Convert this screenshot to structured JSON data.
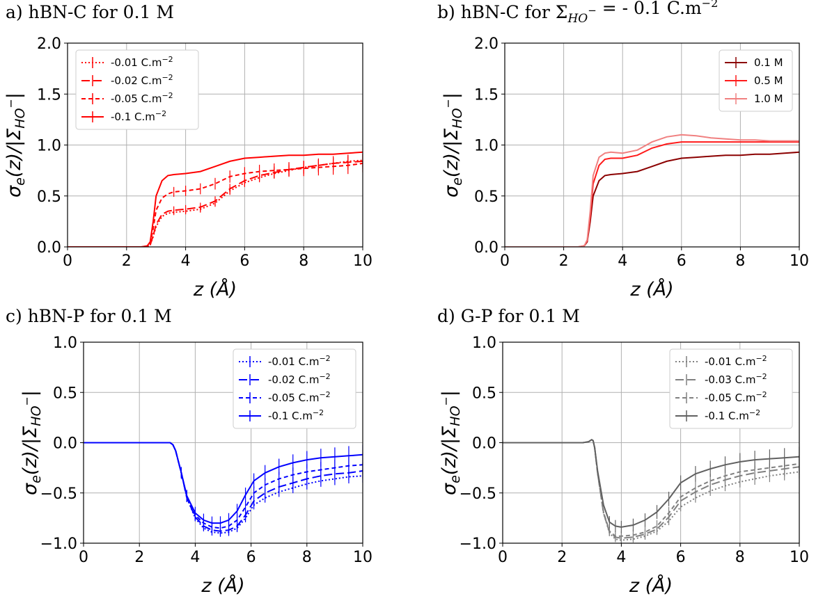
{
  "chart_data": [
    {
      "type": "line",
      "panel": "a",
      "title": "a) hBN-C for 0.1 M",
      "xlabel": "z (Å)",
      "ylabel": "σe(z)/|ΣHO−|",
      "xlim": [
        0,
        10
      ],
      "ylim": [
        0,
        2
      ],
      "xticks": [
        "0",
        "2",
        "4",
        "6",
        "8",
        "10"
      ],
      "yticks": [
        "0.0",
        "0.5",
        "1.0",
        "1.5",
        "2.0"
      ],
      "grid": true,
      "legend_position": "top-left",
      "x": [
        0,
        2.5,
        2.7,
        2.8,
        2.9,
        3.0,
        3.2,
        3.4,
        3.6,
        4.0,
        4.5,
        5.0,
        5.5,
        6.0,
        6.5,
        7.0,
        7.5,
        8.0,
        8.5,
        9.0,
        9.5,
        10.0
      ],
      "series": [
        {
          "name": "-0.01 C.m⁻²",
          "color": "#ff0000",
          "dash": "2,3",
          "errorbars": true,
          "values": [
            0,
            0,
            0.005,
            0.02,
            0.1,
            0.2,
            0.3,
            0.33,
            0.34,
            0.35,
            0.37,
            0.43,
            0.55,
            0.63,
            0.68,
            0.72,
            0.75,
            0.78,
            0.8,
            0.82,
            0.84,
            0.85
          ]
        },
        {
          "name": "-0.02 C.m⁻²",
          "color": "#ff0000",
          "dash": "12,5",
          "errorbars": true,
          "values": [
            0,
            0,
            0.005,
            0.02,
            0.11,
            0.22,
            0.32,
            0.35,
            0.36,
            0.37,
            0.39,
            0.45,
            0.57,
            0.65,
            0.7,
            0.73,
            0.76,
            0.78,
            0.8,
            0.82,
            0.83,
            0.84
          ]
        },
        {
          "name": "-0.05 C.m⁻²",
          "color": "#ff0000",
          "dash": "6,4",
          "errorbars": true,
          "values": [
            0,
            0,
            0.007,
            0.03,
            0.18,
            0.36,
            0.48,
            0.52,
            0.54,
            0.55,
            0.57,
            0.62,
            0.69,
            0.72,
            0.74,
            0.75,
            0.76,
            0.77,
            0.78,
            0.79,
            0.8,
            0.82
          ]
        },
        {
          "name": "-0.1 C.m⁻²",
          "color": "#ff0000",
          "dash": "",
          "errorbars": false,
          "values": [
            0,
            0,
            0.01,
            0.05,
            0.25,
            0.5,
            0.65,
            0.7,
            0.71,
            0.72,
            0.74,
            0.79,
            0.84,
            0.87,
            0.88,
            0.89,
            0.9,
            0.9,
            0.91,
            0.91,
            0.92,
            0.93
          ]
        }
      ]
    },
    {
      "type": "line",
      "panel": "b",
      "title": "b) hBN-C for ΣHO⁻ = - 0.1 C.m⁻²",
      "xlabel": "z (Å)",
      "ylabel": "σe(z)/|ΣHO−|",
      "xlim": [
        0,
        10
      ],
      "ylim": [
        0,
        2
      ],
      "xticks": [
        "0",
        "2",
        "4",
        "6",
        "8",
        "10"
      ],
      "yticks": [
        "0.0",
        "0.5",
        "1.0",
        "1.5",
        "2.0"
      ],
      "grid": true,
      "legend_position": "top-right",
      "x": [
        0,
        2.5,
        2.7,
        2.8,
        2.9,
        3.0,
        3.2,
        3.4,
        3.6,
        4.0,
        4.5,
        5.0,
        5.5,
        6.0,
        6.5,
        7.0,
        7.5,
        8.0,
        8.5,
        9.0,
        9.5,
        10.0
      ],
      "series": [
        {
          "name": "0.1 M",
          "color": "#8b0000",
          "dash": "",
          "errorbars": false,
          "values": [
            0,
            0,
            0.01,
            0.05,
            0.25,
            0.5,
            0.65,
            0.7,
            0.71,
            0.72,
            0.74,
            0.79,
            0.84,
            0.87,
            0.88,
            0.89,
            0.9,
            0.9,
            0.91,
            0.91,
            0.92,
            0.93
          ]
        },
        {
          "name": "0.5 M",
          "color": "#ff1a1a",
          "dash": "",
          "errorbars": false,
          "values": [
            0,
            0,
            0.01,
            0.06,
            0.3,
            0.62,
            0.8,
            0.86,
            0.87,
            0.87,
            0.9,
            0.97,
            1.01,
            1.03,
            1.03,
            1.03,
            1.03,
            1.03,
            1.03,
            1.03,
            1.03,
            1.03
          ]
        },
        {
          "name": "1.0 M",
          "color": "#f08080",
          "dash": "",
          "errorbars": false,
          "values": [
            0,
            0,
            0.01,
            0.07,
            0.35,
            0.7,
            0.88,
            0.92,
            0.93,
            0.92,
            0.95,
            1.03,
            1.08,
            1.1,
            1.09,
            1.07,
            1.06,
            1.05,
            1.05,
            1.04,
            1.04,
            1.04
          ]
        }
      ]
    },
    {
      "type": "line",
      "panel": "c",
      "title": "c) hBN-P for 0.1 M",
      "xlabel": "z (Å)",
      "ylabel": "σe(z)/|ΣHO−|",
      "xlim": [
        0,
        10
      ],
      "ylim": [
        -1,
        1
      ],
      "xticks": [
        "0",
        "2",
        "4",
        "6",
        "8",
        "10"
      ],
      "yticks": [
        "−1.0",
        "−0.5",
        "0.0",
        "0.5",
        "1.0"
      ],
      "grid": true,
      "legend_position": "top-right",
      "x": [
        0,
        2.8,
        3.1,
        3.2,
        3.3,
        3.5,
        3.7,
        4.0,
        4.3,
        4.6,
        4.9,
        5.2,
        5.5,
        5.8,
        6.1,
        6.5,
        7.0,
        7.5,
        8.0,
        8.5,
        9.0,
        9.5,
        10.0
      ],
      "series": [
        {
          "name": "-0.01 C.m⁻²",
          "color": "#0000ff",
          "dash": "2,3",
          "errorbars": true,
          "values": [
            0,
            0,
            0,
            -0.02,
            -0.08,
            -0.3,
            -0.55,
            -0.75,
            -0.85,
            -0.89,
            -0.9,
            -0.89,
            -0.85,
            -0.75,
            -0.62,
            -0.55,
            -0.49,
            -0.45,
            -0.41,
            -0.38,
            -0.36,
            -0.34,
            -0.33
          ]
        },
        {
          "name": "-0.02 C.m⁻²",
          "color": "#0000ff",
          "dash": "12,5",
          "errorbars": true,
          "values": [
            0,
            0,
            0,
            -0.02,
            -0.08,
            -0.3,
            -0.55,
            -0.74,
            -0.83,
            -0.87,
            -0.88,
            -0.87,
            -0.83,
            -0.72,
            -0.58,
            -0.5,
            -0.44,
            -0.4,
            -0.36,
            -0.33,
            -0.31,
            -0.3,
            -0.28
          ]
        },
        {
          "name": "-0.05 C.m⁻²",
          "color": "#0000ff",
          "dash": "6,4",
          "errorbars": true,
          "values": [
            0,
            0,
            0,
            -0.02,
            -0.08,
            -0.3,
            -0.54,
            -0.72,
            -0.8,
            -0.84,
            -0.85,
            -0.83,
            -0.77,
            -0.64,
            -0.5,
            -0.42,
            -0.36,
            -0.32,
            -0.29,
            -0.27,
            -0.25,
            -0.23,
            -0.22
          ]
        },
        {
          "name": "-0.1 C.m⁻²",
          "color": "#0000ff",
          "dash": "",
          "errorbars": true,
          "values": [
            0,
            0,
            0,
            -0.02,
            -0.08,
            -0.3,
            -0.53,
            -0.7,
            -0.77,
            -0.8,
            -0.8,
            -0.77,
            -0.68,
            -0.52,
            -0.38,
            -0.3,
            -0.24,
            -0.2,
            -0.17,
            -0.15,
            -0.14,
            -0.13,
            -0.12
          ]
        }
      ]
    },
    {
      "type": "line",
      "panel": "d",
      "title": "d) G-P for 0.1 M",
      "xlabel": "z (Å)",
      "ylabel": "σe(z)/|ΣHO−|",
      "xlim": [
        0,
        10
      ],
      "ylim": [
        -1,
        1
      ],
      "xticks": [
        "0",
        "2",
        "4",
        "6",
        "8",
        "10"
      ],
      "yticks": [
        "−1.0",
        "−0.5",
        "0.0",
        "0.5",
        "1.0"
      ],
      "grid": true,
      "legend_position": "top-right",
      "x": [
        0,
        2.7,
        2.9,
        3.0,
        3.05,
        3.1,
        3.2,
        3.4,
        3.6,
        3.8,
        4.0,
        4.4,
        4.8,
        5.2,
        5.6,
        6.0,
        6.5,
        7.0,
        7.5,
        8.0,
        8.5,
        9.0,
        9.5,
        10.0
      ],
      "series": [
        {
          "name": "-0.01 C.m⁻²",
          "color": "#808080",
          "dash": "2,3",
          "errorbars": true,
          "values": [
            0,
            0,
            0.01,
            0.03,
            0.02,
            -0.05,
            -0.3,
            -0.7,
            -0.9,
            -0.96,
            -0.97,
            -0.96,
            -0.93,
            -0.88,
            -0.78,
            -0.64,
            -0.55,
            -0.48,
            -0.43,
            -0.39,
            -0.36,
            -0.33,
            -0.31,
            -0.29
          ]
        },
        {
          "name": "-0.03 C.m⁻²",
          "color": "#808080",
          "dash": "12,5",
          "errorbars": true,
          "values": [
            0,
            0,
            0.01,
            0.03,
            0.02,
            -0.05,
            -0.3,
            -0.7,
            -0.89,
            -0.94,
            -0.95,
            -0.94,
            -0.91,
            -0.86,
            -0.74,
            -0.58,
            -0.49,
            -0.42,
            -0.37,
            -0.33,
            -0.3,
            -0.28,
            -0.26,
            -0.24
          ]
        },
        {
          "name": "-0.05 C.m⁻²",
          "color": "#808080",
          "dash": "6,4",
          "errorbars": true,
          "values": [
            0,
            0,
            0.01,
            0.03,
            0.02,
            -0.05,
            -0.3,
            -0.69,
            -0.88,
            -0.93,
            -0.93,
            -0.92,
            -0.89,
            -0.83,
            -0.7,
            -0.54,
            -0.45,
            -0.38,
            -0.33,
            -0.29,
            -0.27,
            -0.25,
            -0.23,
            -0.21
          ]
        },
        {
          "name": "-0.1 C.m⁻²",
          "color": "#606060",
          "dash": "",
          "errorbars": true,
          "values": [
            0,
            0,
            0.01,
            0.03,
            0.02,
            -0.05,
            -0.28,
            -0.62,
            -0.79,
            -0.83,
            -0.84,
            -0.82,
            -0.77,
            -0.69,
            -0.56,
            -0.4,
            -0.31,
            -0.26,
            -0.22,
            -0.19,
            -0.17,
            -0.16,
            -0.15,
            -0.14
          ]
        }
      ]
    }
  ]
}
